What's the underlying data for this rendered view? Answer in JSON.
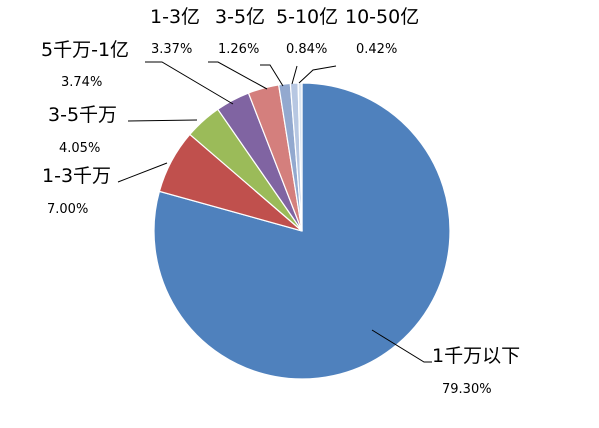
{
  "chart_data": {
    "type": "pie",
    "title": "",
    "start_angle_deg": 0,
    "direction": "clockwise",
    "slices": [
      {
        "label": "1千万以下",
        "value": 79.3,
        "value_label": "79.30%",
        "color": "#4F81BD"
      },
      {
        "label": "1-3千万",
        "value": 7.0,
        "value_label": "7.00%",
        "color": "#C0504D"
      },
      {
        "label": "3-5千万",
        "value": 4.05,
        "value_label": "4.05%",
        "color": "#9BBB59"
      },
      {
        "label": "5千万-1亿",
        "value": 3.74,
        "value_label": "3.74%",
        "color": "#8064A2"
      },
      {
        "label": "1-3亿",
        "value": 3.37,
        "value_label": "3.37%",
        "color": "#D47F7D"
      },
      {
        "label": "3-5亿",
        "value": 1.26,
        "value_label": "1.26%",
        "color": "#93A9CF"
      },
      {
        "label": "5-10亿",
        "value": 0.84,
        "value_label": "0.84%",
        "color": "#B7C7E2"
      },
      {
        "label": "10-50亿",
        "value": 0.42,
        "value_label": "0.42%",
        "color": "#DCE6F2"
      }
    ],
    "legend": "none",
    "leader_lines": true
  }
}
